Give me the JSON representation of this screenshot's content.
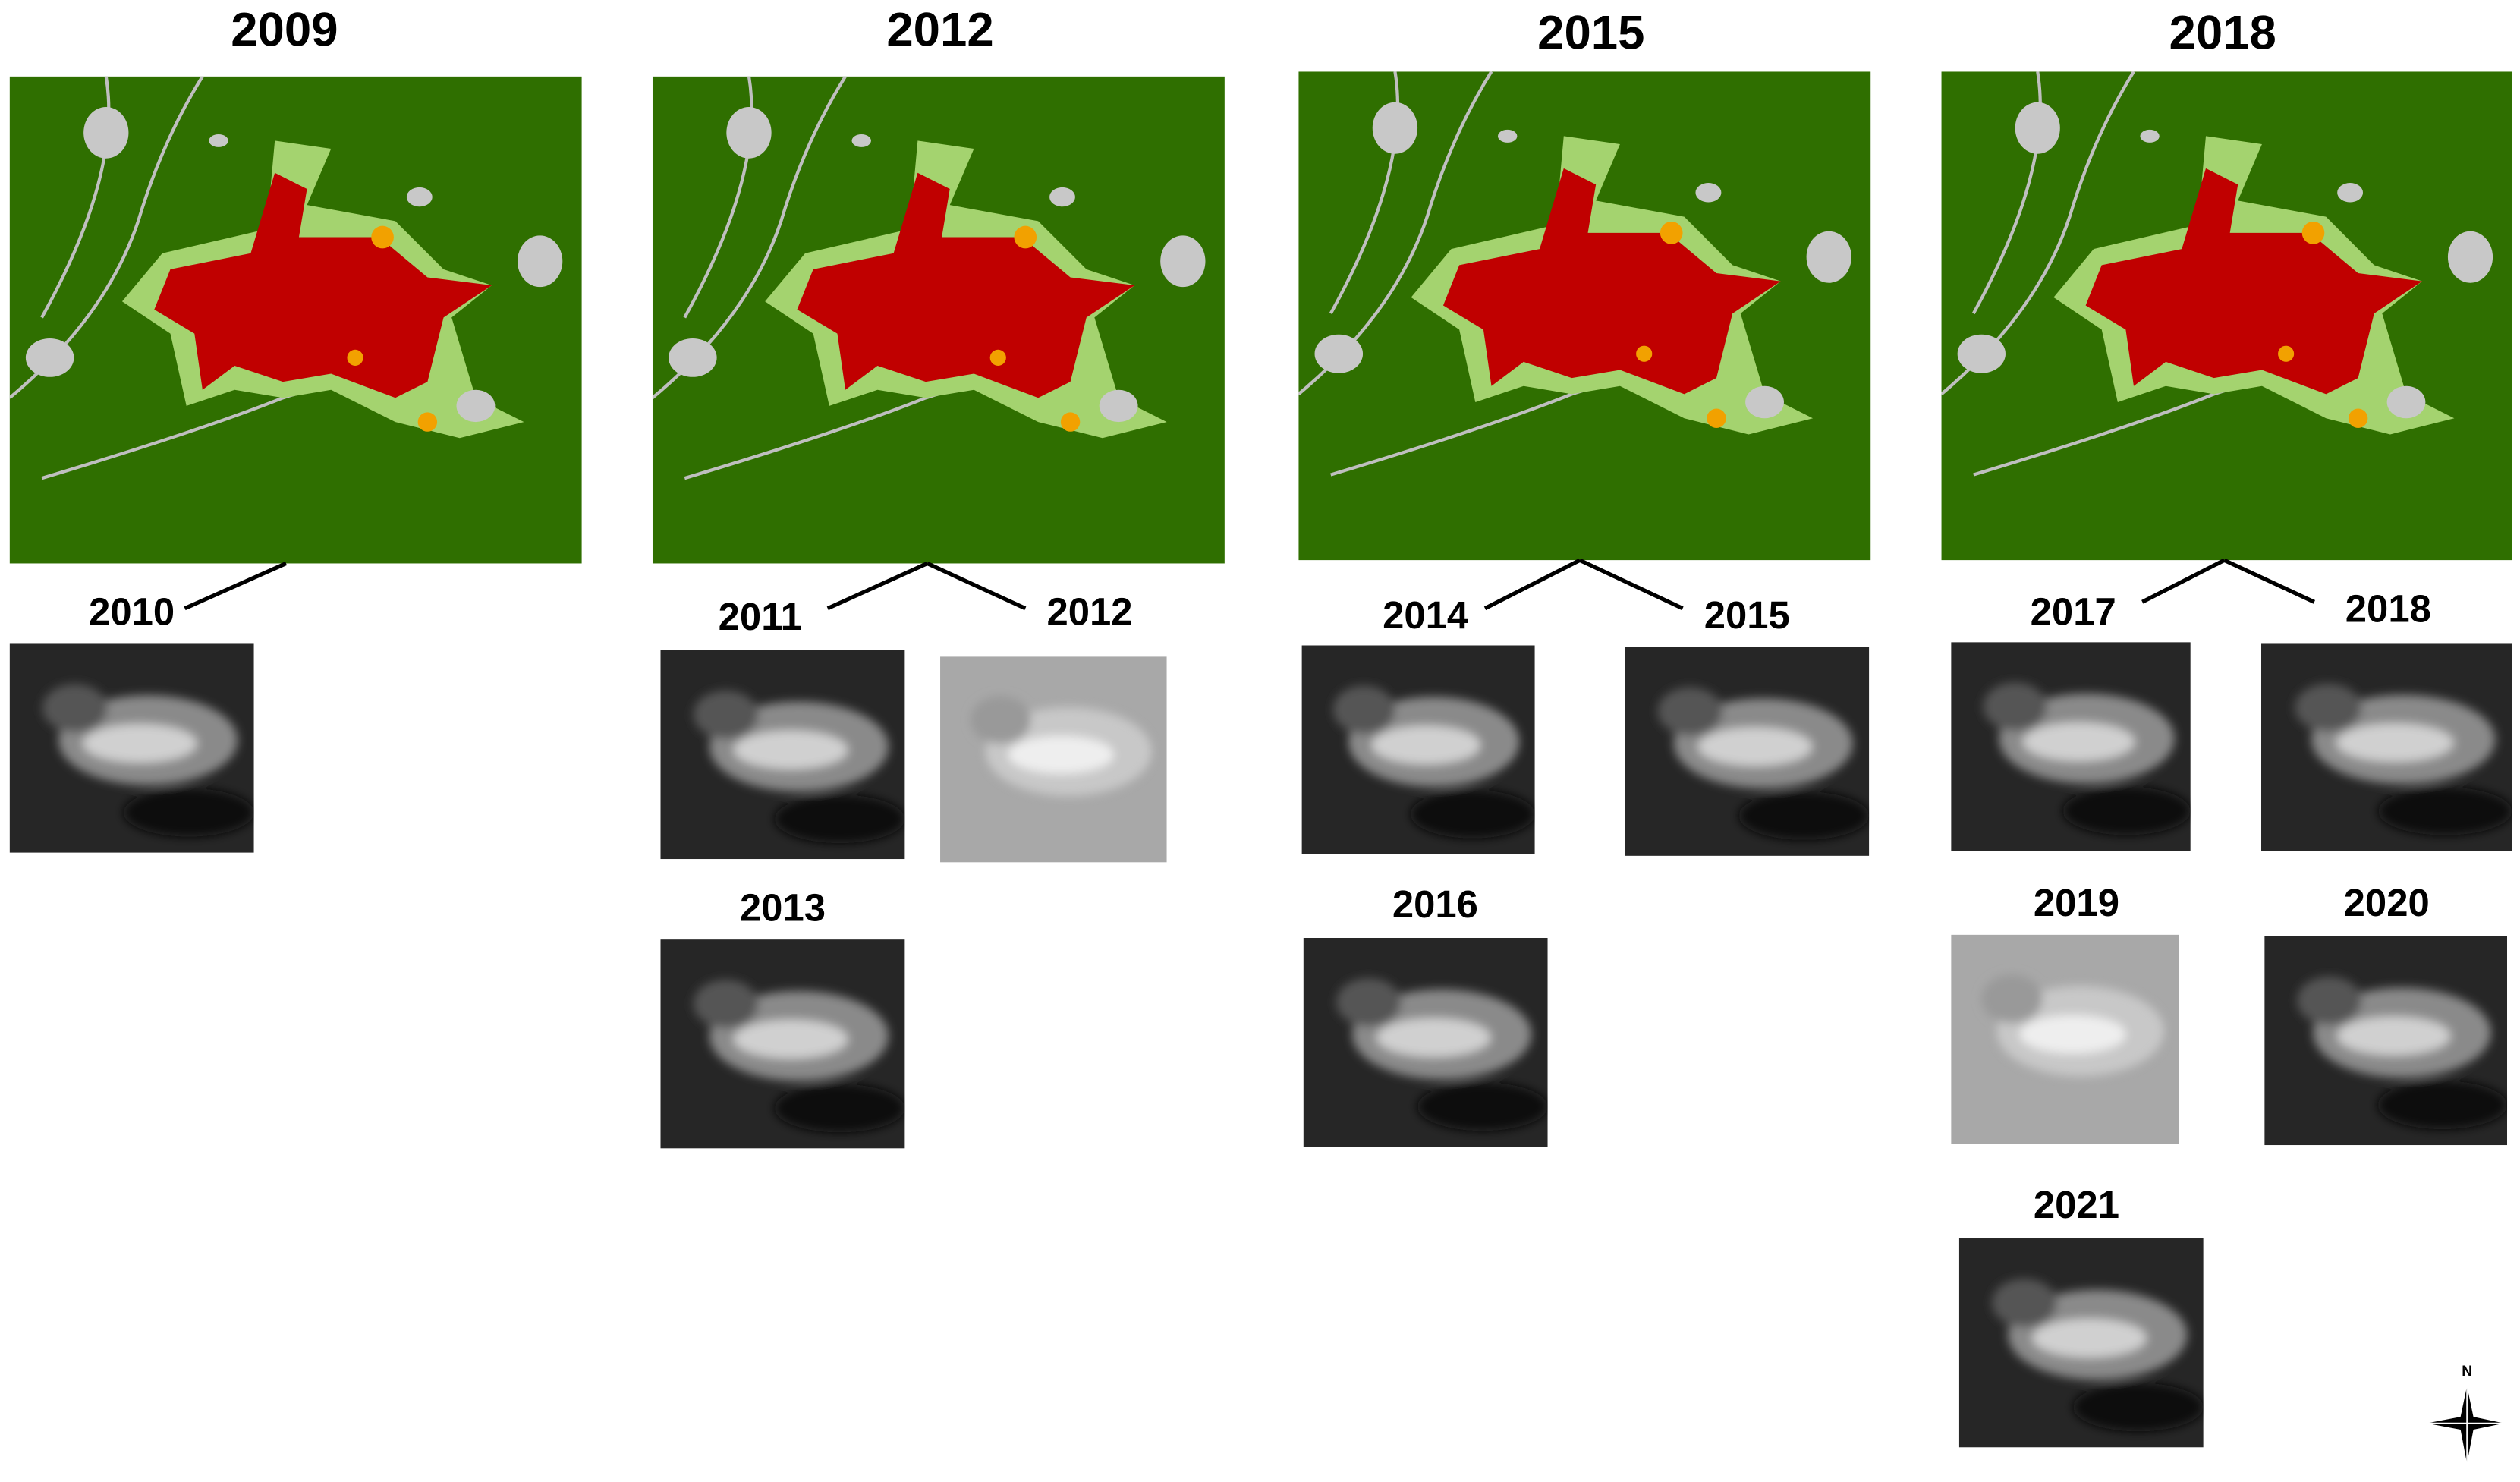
{
  "columns": [
    {
      "title": "2009",
      "images": [
        "2010"
      ]
    },
    {
      "title": "2012",
      "images": [
        "2011",
        "2012",
        "2013"
      ]
    },
    {
      "title": "2015",
      "images": [
        "2014",
        "2015",
        "2016"
      ]
    },
    {
      "title": "2018",
      "images": [
        "2017",
        "2018",
        "2019",
        "2020",
        "2021"
      ]
    }
  ],
  "compass": "N"
}
